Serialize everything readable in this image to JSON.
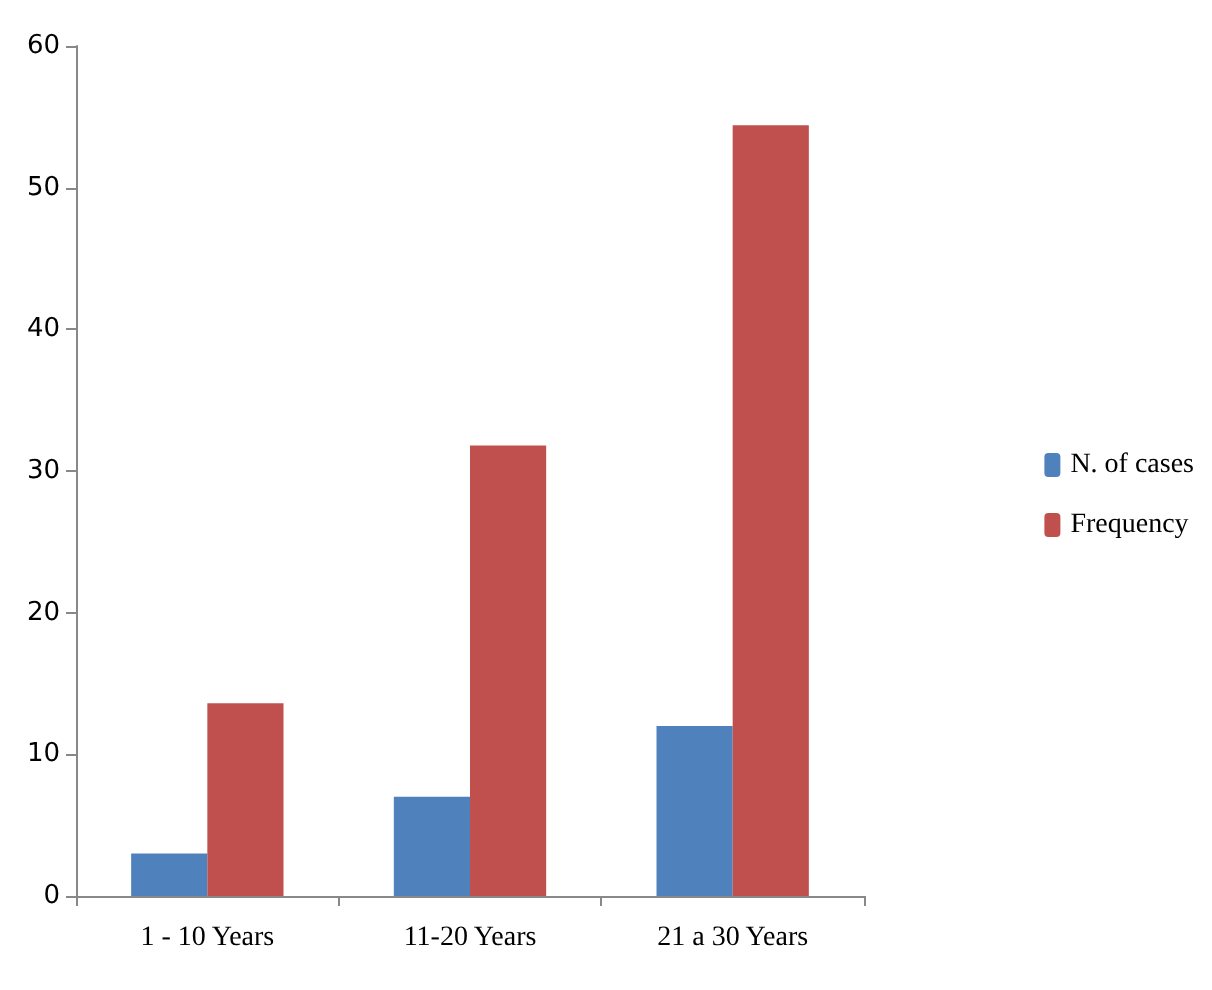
{
  "chart_data": {
    "type": "bar",
    "categories": [
      "1 - 10 Years",
      "11-20 Years",
      "21 a 30 Years"
    ],
    "series": [
      {
        "name": "N. of cases",
        "color": "#4f81bd",
        "values": [
          3,
          7,
          12
        ]
      },
      {
        "name": "Frequency",
        "color": "#c0504d",
        "values": [
          13.6,
          31.8,
          54.4
        ]
      }
    ],
    "ylim": [
      0,
      60
    ],
    "yticks": [
      0,
      10,
      20,
      30,
      40,
      50,
      60
    ],
    "grid": false,
    "legend": "right"
  }
}
